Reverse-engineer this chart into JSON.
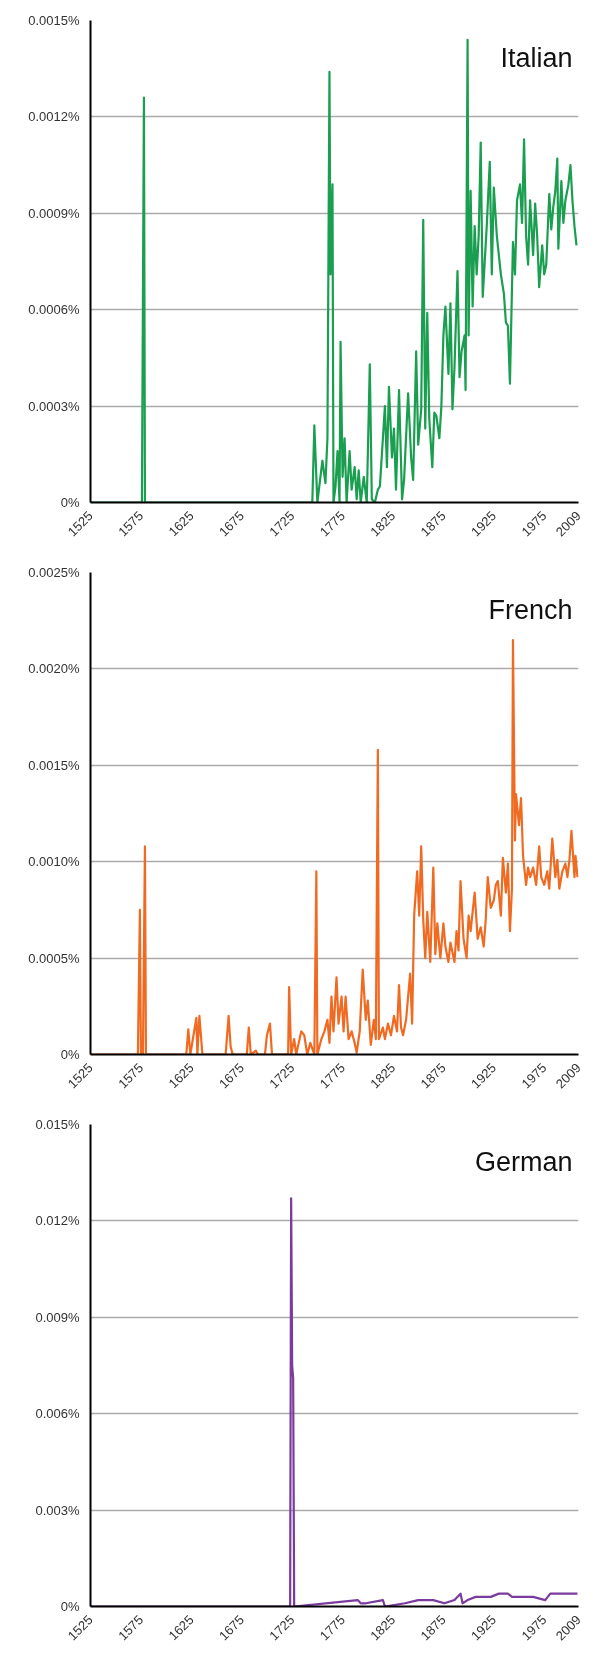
{
  "chart_data": [
    {
      "type": "line",
      "xlim": [
        1525,
        2009
      ],
      "ylim": [
        0,
        0.0015
      ],
      "grid": "y",
      "xticks": [
        1525,
        1575,
        1625,
        1675,
        1725,
        1775,
        1825,
        1875,
        1925,
        1975,
        2009
      ],
      "yticks": [
        {
          "value": 0,
          "label": "0%"
        },
        {
          "value": 0.0003,
          "label": "0.0003%"
        },
        {
          "value": 0.0006,
          "label": "0.0006%"
        },
        {
          "value": 0.0009,
          "label": "0.0009%"
        },
        {
          "value": 0.0012,
          "label": "0.0012%"
        },
        {
          "value": 0.0015,
          "label": "0.0015%"
        }
      ],
      "x": [
        1525,
        1576,
        1578,
        1579,
        1745,
        1747,
        1750,
        1755,
        1758,
        1760,
        1762,
        1763,
        1765,
        1766,
        1768,
        1770,
        1772,
        1773,
        1775,
        1777,
        1779,
        1782,
        1784,
        1787,
        1789,
        1791,
        1793,
        1796,
        1799,
        1802,
        1804,
        1807,
        1810,
        1812,
        1815,
        1817,
        1819,
        1821,
        1824,
        1826,
        1828,
        1831,
        1834,
        1836,
        1840,
        1843,
        1845,
        1848,
        1850,
        1853,
        1855,
        1857,
        1859,
        1861,
        1864,
        1866,
        1868,
        1871,
        1873,
        1875,
        1877,
        1880,
        1882,
        1884,
        1886,
        1889,
        1891,
        1893,
        1896,
        1897,
        1899,
        1900,
        1902,
        1904,
        1906,
        1908,
        1910,
        1912,
        1914,
        1916,
        1918,
        1921,
        1923,
        1925,
        1928,
        1930,
        1932,
        1935,
        1937,
        1939,
        1941,
        1944,
        1946,
        1948,
        1951,
        1953,
        1955,
        1957,
        1959,
        1961,
        1964,
        1966,
        1968,
        1970,
        1973,
        1975,
        1977,
        1980,
        1982,
        1984,
        1986,
        1988,
        1989,
        1992,
        1994,
        1996,
        1999,
        2001,
        2003,
        2005,
        2007
      ],
      "series": [
        {
          "name": "Italian",
          "color": "#1a9e50",
          "values": [
            0,
            0,
            0.00126,
            0,
            0,
            0.00024,
            0,
            0.00013,
            6e-05,
            0.0002,
            0.00134,
            0.00071,
            0.00099,
            0,
            5e-05,
            0.00016,
            0,
            0.0005,
            8e-05,
            0.0002,
            0,
            0.00016,
            4e-05,
            0.00011,
            1e-05,
            0.0001,
            0,
            8e-05,
            0,
            0.00043,
            1e-05,
            0,
            4e-05,
            5e-05,
            0.0002,
            0.0003,
            0.00011,
            0.00036,
            0.00014,
            0.00023,
            4e-05,
            0.00035,
            1e-05,
            7e-05,
            0.00034,
            0.00014,
            7e-05,
            0.00047,
            0.00018,
            0.00029,
            0.00088,
            0.00023,
            0.00059,
            0.00026,
            0.00011,
            0.00028,
            0.00027,
            0.0002,
            0.0003,
            0.00052,
            0.00061,
            0.0004,
            0.00062,
            0.00029,
            0.00042,
            0.00072,
            0.00039,
            0.00047,
            0.00052,
            0.00035,
            0.00144,
            0.00052,
            0.00097,
            0.00061,
            0.00086,
            0.00071,
            0.00083,
            0.00112,
            0.00064,
            0.00075,
            0.00086,
            0.00106,
            0.00071,
            0.00098,
            0.00083,
            0.00077,
            0.00071,
            0.00065,
            0.00056,
            0.00055,
            0.00037,
            0.00081,
            0.00071,
            0.00094,
            0.00099,
            0.00087,
            0.00113,
            0.00083,
            0.00074,
            0.00094,
            0.00077,
            0.00093,
            0.00083,
            0.00067,
            0.0008,
            0.00071,
            0.00074,
            0.00096,
            0.00085,
            0.00092,
            0.00097,
            0.00107,
            0.00079,
            0.001,
            0.00087,
            0.00094,
            0.00099,
            0.00105,
            0.00094,
            0.00086,
            0.0008
          ]
        }
      ]
    },
    {
      "type": "line",
      "xlim": [
        1525,
        2009
      ],
      "ylim": [
        0,
        0.0025
      ],
      "grid": "y",
      "xticks": [
        1525,
        1575,
        1625,
        1675,
        1725,
        1775,
        1825,
        1875,
        1925,
        1975,
        2009
      ],
      "yticks": [
        {
          "value": 0,
          "label": "0%"
        },
        {
          "value": 0.0005,
          "label": "0.0005%"
        },
        {
          "value": 0.001,
          "label": "0.0010%"
        },
        {
          "value": 0.0015,
          "label": "0.0015%"
        },
        {
          "value": 0.002,
          "label": "0.0020%"
        },
        {
          "value": 0.0025,
          "label": "0.0025%"
        }
      ],
      "x": [
        1525,
        1572,
        1574,
        1575,
        1577,
        1579,
        1580,
        1620,
        1622,
        1624,
        1630,
        1631,
        1633,
        1636,
        1659,
        1662,
        1664,
        1666,
        1680,
        1682,
        1684,
        1689,
        1691,
        1698,
        1700,
        1703,
        1705,
        1721,
        1722,
        1724,
        1727,
        1729,
        1734,
        1737,
        1740,
        1743,
        1747,
        1749,
        1750,
        1754,
        1757,
        1760,
        1762,
        1764,
        1766,
        1769,
        1771,
        1774,
        1776,
        1778,
        1781,
        1784,
        1787,
        1789,
        1792,
        1795,
        1798,
        1800,
        1803,
        1806,
        1808,
        1810,
        1811,
        1815,
        1817,
        1820,
        1823,
        1826,
        1829,
        1831,
        1833,
        1835,
        1838,
        1842,
        1844,
        1846,
        1849,
        1851,
        1853,
        1855,
        1857,
        1859,
        1862,
        1865,
        1867,
        1869,
        1872,
        1875,
        1877,
        1880,
        1882,
        1886,
        1888,
        1890,
        1892,
        1895,
        1898,
        1900,
        1902,
        1906,
        1909,
        1912,
        1915,
        1917,
        1919,
        1922,
        1925,
        1927,
        1929,
        1932,
        1934,
        1937,
        1939,
        1941,
        1943,
        1944,
        1946,
        1947,
        1950,
        1952,
        1954,
        1957,
        1959,
        1961,
        1964,
        1967,
        1970,
        1972,
        1975,
        1978,
        1980,
        1983,
        1986,
        1988,
        1990,
        1993,
        1996,
        1998,
        2000,
        2002,
        2005,
        2006,
        2008
      ],
      "series": [
        {
          "name": "French",
          "color": "#f06a22",
          "values": [
            0,
            0,
            0.00075,
            0,
            0,
            0.00108,
            0,
            0,
            0.00013,
            0,
            0.00019,
            0,
            0.0002,
            0,
            0,
            0.0002,
            4e-05,
            0,
            0,
            0.00014,
            0,
            2e-05,
            0,
            0,
            0.0001,
            0.00016,
            0,
            0,
            0.00035,
            0,
            8e-05,
            0,
            0.00012,
            0.0001,
            0,
            6e-05,
            0,
            0.00095,
            0,
            8e-05,
            0.00012,
            0.00018,
            6e-05,
            0.0003,
            0.00012,
            0.0004,
            0.00016,
            0.0003,
            0.00012,
            0.0003,
            8e-05,
            0.00012,
            6e-05,
            1e-05,
            0.00012,
            0.00044,
            0.00018,
            0.00028,
            5e-05,
            0.00018,
            8e-05,
            0.00158,
            8e-05,
            0.00014,
            8e-05,
            0.00016,
            0.0001,
            0.0002,
            0.00012,
            0.00036,
            0.00014,
            0.0001,
            0.00018,
            0.00042,
            0.00016,
            0.00072,
            0.00095,
            0.00072,
            0.00108,
            0.0007,
            0.0005,
            0.00074,
            0.00048,
            0.00097,
            0.00052,
            0.00068,
            0.0005,
            0.00068,
            0.00056,
            0.00048,
            0.00058,
            0.00048,
            0.00064,
            0.00054,
            0.0009,
            0.0006,
            0.0005,
            0.00072,
            0.00064,
            0.00084,
            0.0006,
            0.00066,
            0.00056,
            0.0007,
            0.00092,
            0.00076,
            0.0008,
            0.00088,
            0.0009,
            0.00072,
            0.00102,
            0.00084,
            0.00099,
            0.00064,
            0.00086,
            0.00215,
            0.00111,
            0.00135,
            0.00119,
            0.00133,
            0.00103,
            0.00088,
            0.00097,
            0.00092,
            0.00097,
            0.00088,
            0.00108,
            0.00092,
            0.00088,
            0.00095,
            0.00086,
            0.00112,
            0.00092,
            0.00101,
            0.00086,
            0.00095,
            0.00099,
            0.00092,
            0.00101,
            0.00116,
            0.00092,
            0.00103,
            0.00092
          ]
        }
      ]
    },
    {
      "type": "line",
      "xlim": [
        1525,
        2009
      ],
      "ylim": [
        0,
        0.015
      ],
      "grid": "y",
      "xticks": [
        1525,
        1575,
        1625,
        1675,
        1725,
        1775,
        1825,
        1875,
        1925,
        1975,
        2009
      ],
      "yticks": [
        {
          "value": 0,
          "label": "0%"
        },
        {
          "value": 0.003,
          "label": "0.003%"
        },
        {
          "value": 0.006,
          "label": "0.006%"
        },
        {
          "value": 0.009,
          "label": "0.009%"
        },
        {
          "value": 0.012,
          "label": "0.012%"
        },
        {
          "value": 0.015,
          "label": "0.015%"
        }
      ],
      "x": [
        1525,
        1723,
        1724,
        1725,
        1726,
        1727,
        1790,
        1793,
        1798,
        1815,
        1817,
        1837,
        1850,
        1861,
        1865,
        1876,
        1886,
        1892,
        1894,
        1899,
        1907,
        1917,
        1922,
        1930,
        1936,
        1939,
        1943,
        1949,
        1964,
        1976,
        1981,
        1995,
        2002,
        2008
      ],
      "series": [
        {
          "name": "German",
          "color": "#7b3a9e",
          "values": [
            0,
            0,
            0.0127,
            0.0075,
            0.0071,
            0,
            0.0002,
            0.0001,
            0.0001,
            0.0002,
            0,
            0.0001,
            0.0002,
            0.0002,
            0.0002,
            0.0001,
            0.0002,
            0.0004,
            0.0001,
            0.0002,
            0.0003,
            0.0003,
            0.0003,
            0.0004,
            0.0004,
            0.0004,
            0.0003,
            0.0003,
            0.0003,
            0.0002,
            0.0004,
            0.0004,
            0.0004,
            0.0004
          ]
        }
      ]
    }
  ]
}
